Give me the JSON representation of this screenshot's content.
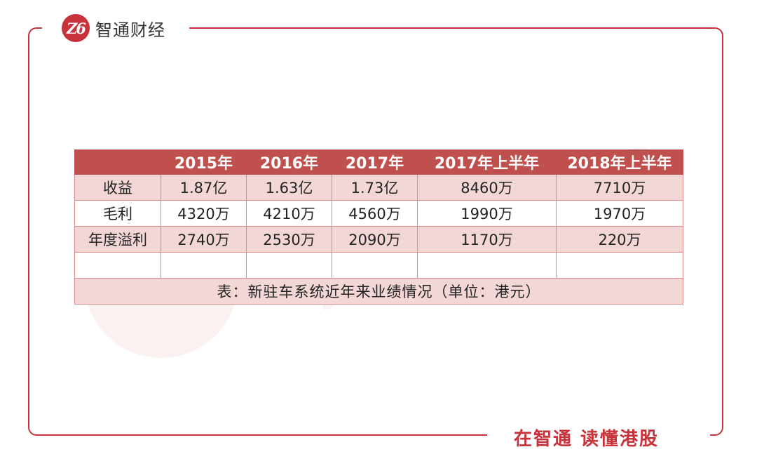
{
  "brand": {
    "logo_glyph": "Z6",
    "name": "智通财经",
    "watermark": "智通财经",
    "slogan": "在智通 读懂港股",
    "accent_color": "#c8323a"
  },
  "table": {
    "headers": [
      "",
      "2015年",
      "2016年",
      "2017年",
      "2017年上半年",
      "2018年上半年"
    ],
    "rows": [
      [
        "收益",
        "1.87亿",
        "1.63亿",
        "1.73亿",
        "8460万",
        "7710万"
      ],
      [
        "毛利",
        "4320万",
        "4210万",
        "4560万",
        "1990万",
        "1970万"
      ],
      [
        "年度溢利",
        "2740万",
        "2530万",
        "2090万",
        "1170万",
        "220万"
      ],
      [
        "",
        "",
        "",
        "",
        "",
        ""
      ]
    ],
    "note": "表：新驻车系统近年来业绩情况（单位：港元）"
  }
}
